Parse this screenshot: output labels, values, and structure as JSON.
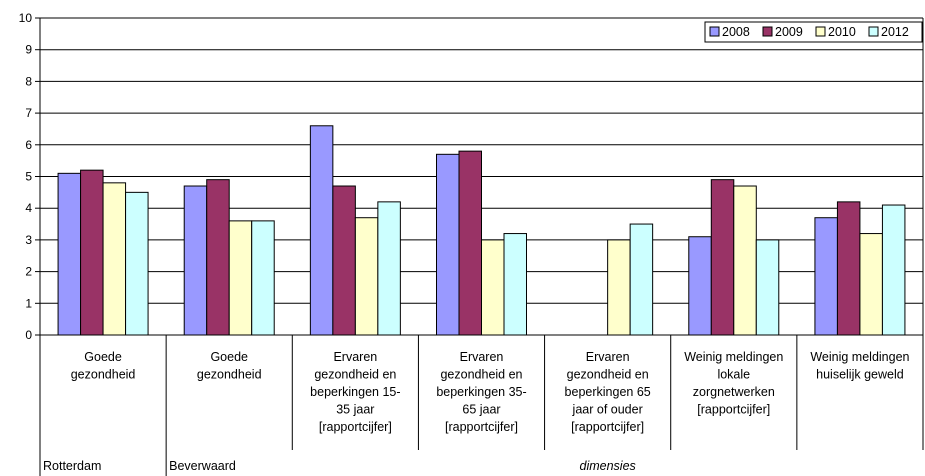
{
  "chart_data": {
    "type": "bar",
    "categories": [
      [
        "Goede",
        "gezondheid"
      ],
      [
        "Goede",
        "gezondheid"
      ],
      [
        "Ervaren",
        "gezondheid en",
        "beperkingen 15-",
        "35 jaar",
        "[rapportcijfer]"
      ],
      [
        "Ervaren",
        "gezondheid en",
        "beperkingen 35-",
        "65 jaar",
        "[rapportcijfer]"
      ],
      [
        "Ervaren",
        "gezondheid en",
        "beperkingen 65",
        "jaar of ouder",
        "[rapportcijfer]"
      ],
      [
        "Weinig meldingen",
        "lokale",
        "zorgnetwerken",
        "[rapportcijfer]"
      ],
      [
        "Weinig meldingen",
        "huiselijk geweld"
      ]
    ],
    "groups": [
      {
        "label": "Rotterdam",
        "span": [
          0,
          0
        ]
      },
      {
        "label": "Beverwaard",
        "span": [
          1,
          6
        ]
      }
    ],
    "xlabel": "dimensies",
    "series": [
      {
        "name": "2008",
        "color": "#9999ff",
        "values": [
          5.1,
          4.7,
          6.6,
          5.7,
          null,
          3.1,
          3.7
        ]
      },
      {
        "name": "2009",
        "color": "#993366",
        "values": [
          5.2,
          4.9,
          4.7,
          5.8,
          null,
          4.9,
          4.2
        ]
      },
      {
        "name": "2010",
        "color": "#ffffcc",
        "values": [
          4.8,
          3.6,
          3.7,
          3.0,
          3.0,
          4.7,
          3.2
        ]
      },
      {
        "name": "2012",
        "color": "#ccffff",
        "values": [
          4.5,
          3.6,
          4.2,
          3.2,
          3.5,
          3.0,
          4.1
        ]
      }
    ],
    "ylim": [
      0,
      10
    ],
    "yticks": [
      0,
      1,
      2,
      3,
      4,
      5,
      6,
      7,
      8,
      9,
      10
    ],
    "grid": true,
    "legend": "top-right"
  }
}
